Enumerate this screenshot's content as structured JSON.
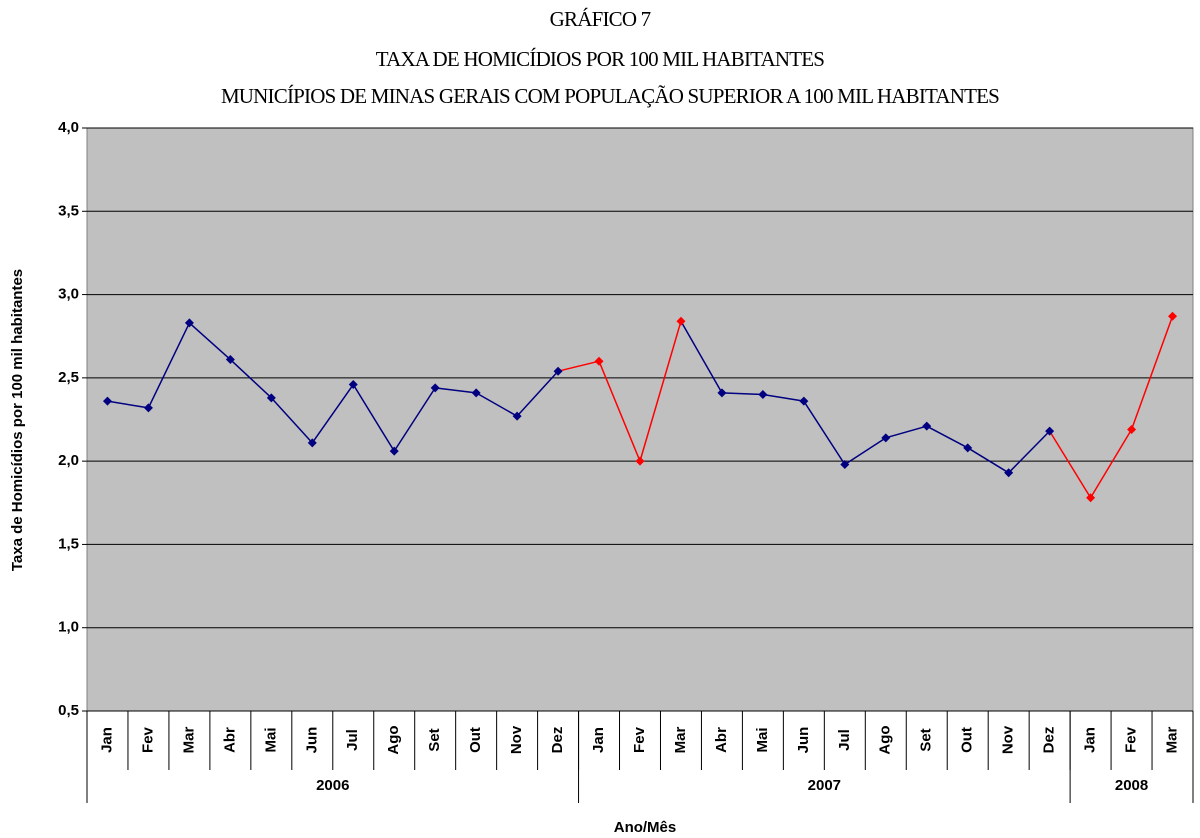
{
  "chart_data": {
    "type": "line",
    "title": [
      "GRÁFICO 7",
      "TAXA DE HOMICÍDIOS POR 100 MIL HABITANTES",
      "MUNICÍPIOS DE MINAS GERAIS COM POPULAÇÃO SUPERIOR A 100 MIL HABITANTES"
    ],
    "x_label": "Ano/Mês",
    "y_label": "Taxa de Homicídios por 100 mil habitantes",
    "groups": [
      {
        "label": "2006",
        "categories": [
          "Jan",
          "Fev",
          "Mar",
          "Abr",
          "Mai",
          "Jun",
          "Jul",
          "Ago",
          "Set",
          "Out",
          "Nov",
          "Dez"
        ]
      },
      {
        "label": "2007",
        "categories": [
          "Jan",
          "Fev",
          "Mar",
          "Abr",
          "Mai",
          "Jun",
          "Jul",
          "Ago",
          "Set",
          "Out",
          "Nov",
          "Dez"
        ]
      },
      {
        "label": "2008",
        "categories": [
          "Jan",
          "Fev",
          "Mar"
        ]
      }
    ],
    "series": [
      {
        "values": [
          2.36,
          2.32,
          2.83,
          2.61,
          2.38,
          2.11,
          2.46,
          2.06,
          2.44,
          2.41,
          2.27,
          2.54,
          2.6,
          2.0,
          2.84,
          2.41,
          2.4,
          2.36,
          1.98,
          2.14,
          2.21,
          2.08,
          1.93,
          2.18,
          1.78,
          2.19,
          2.87
        ],
        "point_colors": [
          "#000080",
          "#000080",
          "#000080",
          "#000080",
          "#000080",
          "#000080",
          "#000080",
          "#000080",
          "#000080",
          "#000080",
          "#000080",
          "#000080",
          "#ff0000",
          "#ff0000",
          "#ff0000",
          "#000080",
          "#000080",
          "#000080",
          "#000080",
          "#000080",
          "#000080",
          "#000080",
          "#000080",
          "#000080",
          "#ff0000",
          "#ff0000",
          "#ff0000"
        ]
      }
    ],
    "ylim": [
      0.5,
      4.0
    ],
    "yticks": [
      {
        "value": 0.5,
        "label": "0,5"
      },
      {
        "value": 1.0,
        "label": "1,0"
      },
      {
        "value": 1.5,
        "label": "1,5"
      },
      {
        "value": 2.0,
        "label": "2,0"
      },
      {
        "value": 2.5,
        "label": "2,5"
      },
      {
        "value": 3.0,
        "label": "3,0"
      },
      {
        "value": 3.5,
        "label": "3,5"
      },
      {
        "value": 4.0,
        "label": "4,0"
      }
    ],
    "grid": true,
    "plot_background": "#c0c0c0"
  }
}
